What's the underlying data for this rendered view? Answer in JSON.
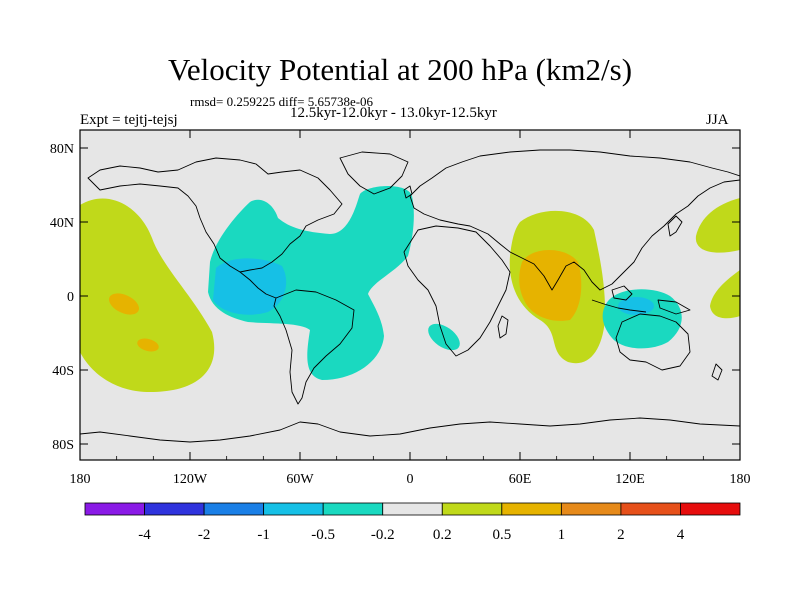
{
  "header": {
    "title": "Velocity Potential at 200 hPa (km2/s)",
    "stats": "rmsd= 0.259225 diff= 5.65738e-06",
    "experiment": "Expt = tejtj-tejsj",
    "period": "12.5kyr-12.0kyr - 13.0kyr-12.5kyr",
    "season": "JJA"
  },
  "axes": {
    "y_ticks": [
      "80N",
      "40N",
      "0",
      "40S",
      "80S"
    ],
    "x_ticks": [
      "180",
      "120W",
      "60W",
      "0",
      "60E",
      "120E",
      "180"
    ]
  },
  "colorbar": {
    "colors": [
      "#8a1ae6",
      "#2f33dd",
      "#1a7fe6",
      "#16c0e6",
      "#1ad9c0",
      "#e6e6e6",
      "#c0d91a",
      "#e6b300",
      "#e68a1a",
      "#e6501a",
      "#e60d0d"
    ],
    "labels": [
      "-4",
      "-2",
      "-1",
      "-0.5",
      "-0.2",
      "0.2",
      "0.5",
      "1",
      "2",
      "4"
    ]
  },
  "colors": {
    "background": "#e6e6e6",
    "coast": "#000000"
  }
}
